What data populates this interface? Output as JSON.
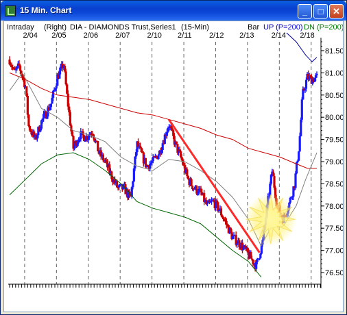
{
  "window": {
    "title": "15 Min. Chart",
    "minimize_glyph": "_",
    "maximize_glyph": "□",
    "close_glyph": "✕"
  },
  "chart_data": {
    "type": "bar",
    "header": {
      "left_label": "Intraday",
      "axis_side": "(Right)",
      "symbol": "DIA - DIAMONDS Trust,Series1",
      "interval": "(15-Min)",
      "style_label": "Bar",
      "up_label": "UP (P=200)",
      "down_label": "DN (P=200)"
    },
    "dates": [
      "2/04",
      "2/05",
      "2/06",
      "2/07",
      "2/10",
      "2/11",
      "2/12",
      "2/13",
      "2/14",
      "2/18"
    ],
    "ylim": [
      76.3,
      81.7
    ],
    "yticks": [
      "81.50",
      "81.00",
      "80.50",
      "80.00",
      "79.50",
      "79.00",
      "78.50",
      "78.00",
      "77.50",
      "77.00",
      "76.50"
    ],
    "close_path": [
      [
        0.0,
        81.3
      ],
      [
        0.15,
        81.0
      ],
      [
        0.3,
        81.15
      ],
      [
        0.5,
        80.7
      ],
      [
        0.6,
        79.8
      ],
      [
        0.8,
        79.5
      ],
      [
        1.0,
        79.9
      ],
      [
        1.3,
        80.3
      ],
      [
        1.5,
        80.9
      ],
      [
        1.7,
        81.2
      ],
      [
        1.8,
        80.5
      ],
      [
        2.0,
        79.3
      ],
      [
        2.2,
        79.6
      ],
      [
        2.4,
        79.55
      ],
      [
        2.6,
        79.7
      ],
      [
        2.8,
        79.2
      ],
      [
        3.0,
        79.0
      ],
      [
        3.25,
        78.6
      ],
      [
        3.4,
        78.4
      ],
      [
        3.6,
        78.4
      ],
      [
        3.8,
        78.15
      ],
      [
        4.0,
        79.4
      ],
      [
        4.3,
        78.9
      ],
      [
        4.5,
        79.0
      ],
      [
        4.7,
        79.2
      ],
      [
        5.0,
        79.85
      ],
      [
        5.2,
        79.4
      ],
      [
        5.4,
        79.05
      ],
      [
        5.6,
        78.6
      ],
      [
        5.8,
        78.4
      ],
      [
        6.0,
        78.3
      ],
      [
        6.2,
        78.0
      ],
      [
        6.4,
        78.1
      ],
      [
        6.6,
        77.9
      ],
      [
        6.8,
        77.6
      ],
      [
        7.0,
        77.3
      ],
      [
        7.3,
        77.1
      ],
      [
        7.5,
        76.9
      ],
      [
        7.75,
        76.65
      ],
      [
        7.95,
        77.2
      ],
      [
        8.1,
        78.05
      ],
      [
        8.25,
        78.8
      ],
      [
        8.4,
        78.0
      ],
      [
        8.6,
        77.7
      ],
      [
        8.8,
        78.1
      ],
      [
        8.95,
        78.5
      ],
      [
        9.1,
        79.4
      ],
      [
        9.2,
        80.5
      ],
      [
        9.35,
        80.9
      ],
      [
        9.5,
        80.85
      ],
      [
        9.65,
        80.9
      ]
    ],
    "ma_black": [
      [
        0.0,
        80.6
      ],
      [
        0.2,
        80.8
      ],
      [
        0.4,
        81.0
      ],
      [
        0.7,
        80.6
      ],
      [
        1.0,
        80.2
      ],
      [
        1.5,
        80.0
      ],
      [
        2.0,
        79.7
      ],
      [
        2.5,
        79.6
      ],
      [
        3.0,
        79.45
      ],
      [
        3.5,
        79.1
      ],
      [
        4.0,
        78.9
      ],
      [
        4.5,
        78.8
      ],
      [
        5.0,
        79.05
      ],
      [
        5.5,
        79.0
      ],
      [
        6.0,
        78.8
      ],
      [
        6.5,
        78.55
      ],
      [
        7.0,
        78.2
      ],
      [
        7.5,
        77.7
      ],
      [
        7.9,
        77.1
      ],
      [
        8.2,
        77.5
      ],
      [
        8.6,
        77.55
      ],
      [
        9.0,
        78.0
      ],
      [
        9.3,
        78.6
      ],
      [
        9.65,
        79.2
      ]
    ],
    "ma_red": [
      [
        0.0,
        81.0
      ],
      [
        0.5,
        80.85
      ],
      [
        1.0,
        80.65
      ],
      [
        1.5,
        80.5
      ],
      [
        2.0,
        80.45
      ],
      [
        2.5,
        80.4
      ],
      [
        3.0,
        80.3
      ],
      [
        3.5,
        80.2
      ],
      [
        4.0,
        80.1
      ],
      [
        4.5,
        80.05
      ],
      [
        5.0,
        79.95
      ],
      [
        5.5,
        79.85
      ],
      [
        6.0,
        79.75
      ],
      [
        6.5,
        79.6
      ],
      [
        7.0,
        79.5
      ],
      [
        7.5,
        79.3
      ],
      [
        8.0,
        79.2
      ],
      [
        8.5,
        79.1
      ],
      [
        9.0,
        78.95
      ],
      [
        9.35,
        78.85
      ],
      [
        9.65,
        78.85
      ]
    ],
    "band_upper": [
      [
        8.7,
        81.9
      ],
      [
        9.0,
        81.7
      ],
      [
        9.3,
        81.4
      ],
      [
        9.5,
        81.25
      ],
      [
        9.65,
        81.35
      ]
    ],
    "band_lower": [
      [
        0.0,
        78.25
      ],
      [
        0.5,
        78.6
      ],
      [
        1.0,
        78.95
      ],
      [
        1.5,
        79.15
      ],
      [
        2.0,
        79.2
      ],
      [
        2.5,
        79.05
      ],
      [
        3.0,
        78.8
      ],
      [
        3.5,
        78.5
      ],
      [
        4.0,
        78.1
      ],
      [
        4.5,
        77.95
      ],
      [
        5.0,
        77.85
      ],
      [
        5.5,
        77.75
      ],
      [
        6.0,
        77.6
      ],
      [
        6.5,
        77.3
      ],
      [
        7.0,
        77.0
      ],
      [
        7.5,
        76.75
      ],
      [
        7.9,
        76.4
      ]
    ],
    "trendline": [
      [
        5.0,
        79.95
      ],
      [
        7.85,
        76.95
      ]
    ],
    "highlight_center": [
      8.2,
      77.7
    ],
    "colors": {
      "up_bar": "#1a1aff",
      "down_bar": "#cc0000",
      "ma_black": "#808080",
      "ma_red": "#cc0000",
      "band_upper": "#000099",
      "band_lower": "#006600",
      "trendline": "#ff2a2a",
      "highlight": "#ffee66"
    }
  }
}
